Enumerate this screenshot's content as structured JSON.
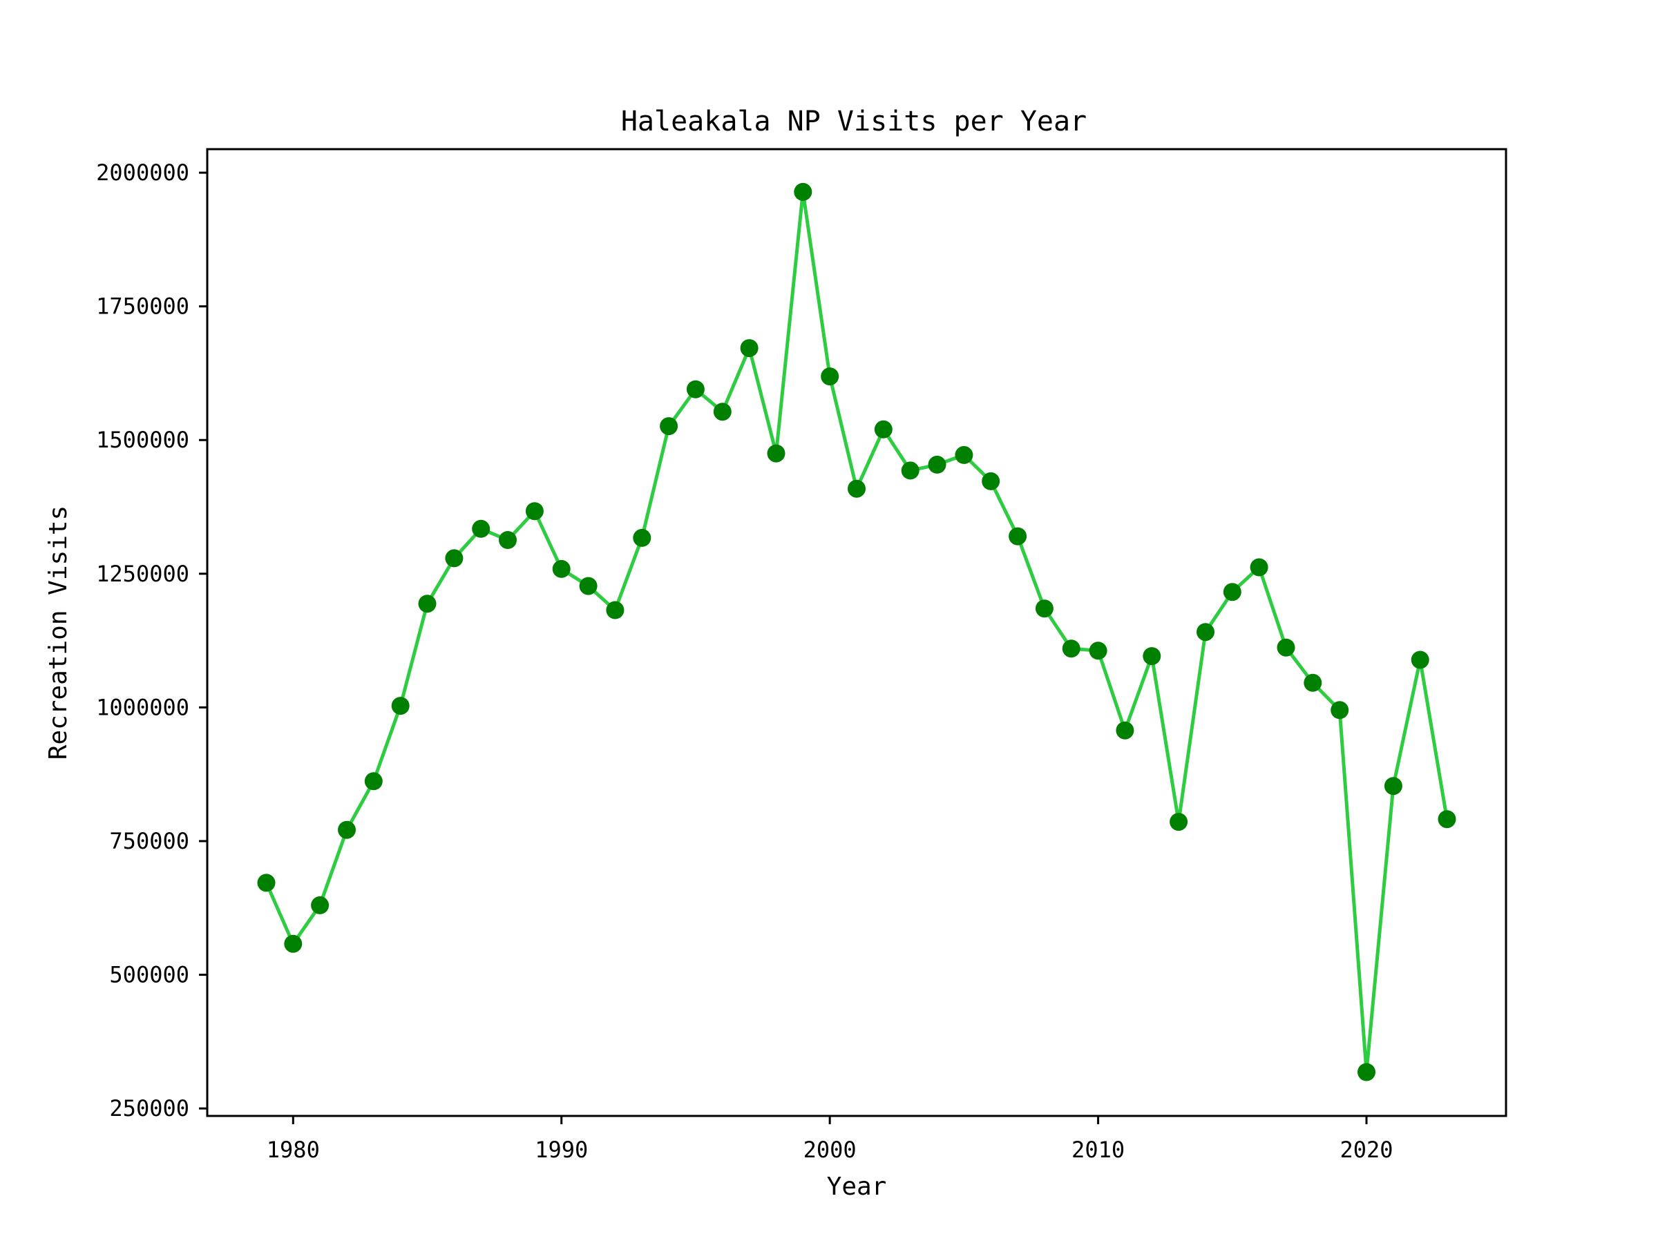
{
  "chart_data": {
    "type": "line",
    "title": "Haleakala NP Visits per Year",
    "xlabel": "Year",
    "ylabel": "Recreation Visits",
    "xlim": [
      1976.8,
      2025.2
    ],
    "ylim": [
      236000,
      2044000
    ],
    "x_ticks": [
      1980,
      1990,
      2000,
      2010,
      2020
    ],
    "y_ticks": [
      250000,
      500000,
      750000,
      1000000,
      1250000,
      1500000,
      1750000,
      2000000
    ],
    "grid": false,
    "legend": "none",
    "colors": {
      "line": "#2ecc40",
      "marker": "#008000",
      "axes": "#000000",
      "text": "#000000"
    },
    "series": [
      {
        "x": [
          1979,
          1980,
          1981,
          1982,
          1983,
          1984,
          1985,
          1986,
          1987,
          1988,
          1989,
          1990,
          1991,
          1992,
          1993,
          1994,
          1995,
          1996,
          1997,
          1998,
          1999,
          2000,
          2001,
          2002,
          2003,
          2004,
          2005,
          2006,
          2007,
          2008,
          2009,
          2010,
          2011,
          2012,
          2013,
          2014,
          2015,
          2016,
          2017,
          2018,
          2019,
          2020,
          2021,
          2022,
          2023
        ],
        "values": [
          672000,
          558000,
          630000,
          771000,
          862000,
          1003000,
          1194000,
          1279000,
          1334000,
          1313000,
          1367000,
          1259000,
          1227000,
          1182000,
          1317000,
          1526000,
          1595000,
          1553000,
          1672000,
          1475000,
          1964000,
          1619000,
          1409000,
          1520000,
          1443000,
          1454000,
          1472000,
          1423000,
          1320000,
          1185000,
          1110000,
          1106000,
          957000,
          1096000,
          786000,
          1141000,
          1216000,
          1262000,
          1112000,
          1046000,
          995000,
          318000,
          853000,
          1089000,
          791000
        ]
      }
    ]
  }
}
